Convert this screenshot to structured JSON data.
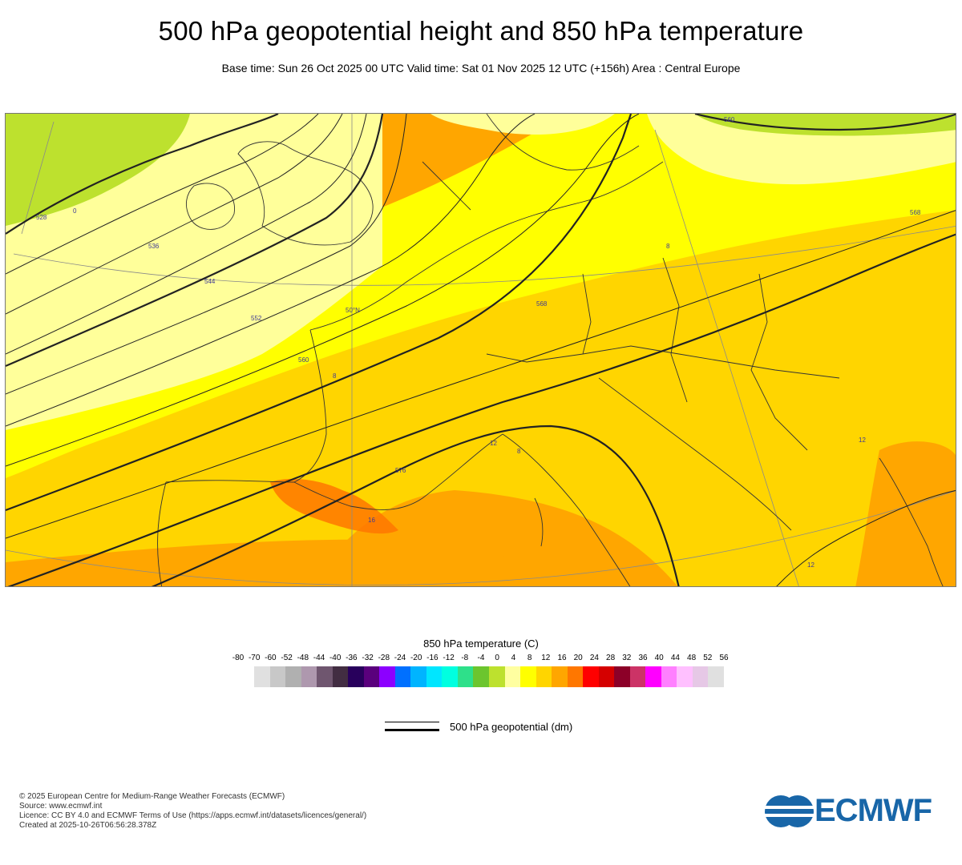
{
  "header": {
    "title": "500 hPa geopotential height and 850 hPa temperature",
    "subtitle": "Base time: Sun 26 Oct 2025 00 UTC Valid time: Sat 01 Nov 2025 12 UTC (+156h) Area : Central Europe"
  },
  "map": {
    "contour_labels": [
      "528",
      "536",
      "544",
      "552",
      "560",
      "568",
      "576",
      "560",
      "568"
    ],
    "temperature_labels": [
      "0",
      "8",
      "8",
      "8",
      "12",
      "12",
      "16",
      "12"
    ],
    "graticule_label": "50°N"
  },
  "colorbar": {
    "title": "850 hPa temperature (C)",
    "ticks": [
      "-80",
      "-70",
      "-60",
      "-52",
      "-48",
      "-44",
      "-40",
      "-36",
      "-32",
      "-28",
      "-24",
      "-20",
      "-16",
      "-12",
      "-8",
      "-4",
      "0",
      "4",
      "8",
      "12",
      "16",
      "20",
      "24",
      "28",
      "32",
      "36",
      "40",
      "44",
      "48",
      "52",
      "56"
    ],
    "colors": [
      "#e0e0e0",
      "#c8c8c8",
      "#b0b0b0",
      "#ae98ae",
      "#6f566f",
      "#422d42",
      "#28005c",
      "#5a007d",
      "#8c00ff",
      "#0070ff",
      "#00b4ff",
      "#00e6ff",
      "#00ffe0",
      "#2ee08a",
      "#6cc52e",
      "#bde12e",
      "#ffffa0",
      "#ffff00",
      "#ffd500",
      "#ffa600",
      "#ff7700",
      "#ff0000",
      "#d50000",
      "#8c0028",
      "#cc3366",
      "#ff00ff",
      "#ff80ff",
      "#ffc0ff",
      "#e6c8e6",
      "#e0e0e0"
    ]
  },
  "legend": {
    "line_label": "500 hPa geopotential (dm)"
  },
  "footer": {
    "copyright": "© 2025 European Centre for Medium-Range Weather Forecasts (ECMWF)",
    "source": "Source: www.ecmwf.int",
    "licence": "Licence: CC BY 4.0 and ECMWF Terms of Use (https://apps.ecmwf.int/datasets/licences/general/)",
    "created": "Created at 2025-10-26T06:56:28.378Z"
  },
  "logo": {
    "text": "ECMWF",
    "color": "#1866a8"
  }
}
